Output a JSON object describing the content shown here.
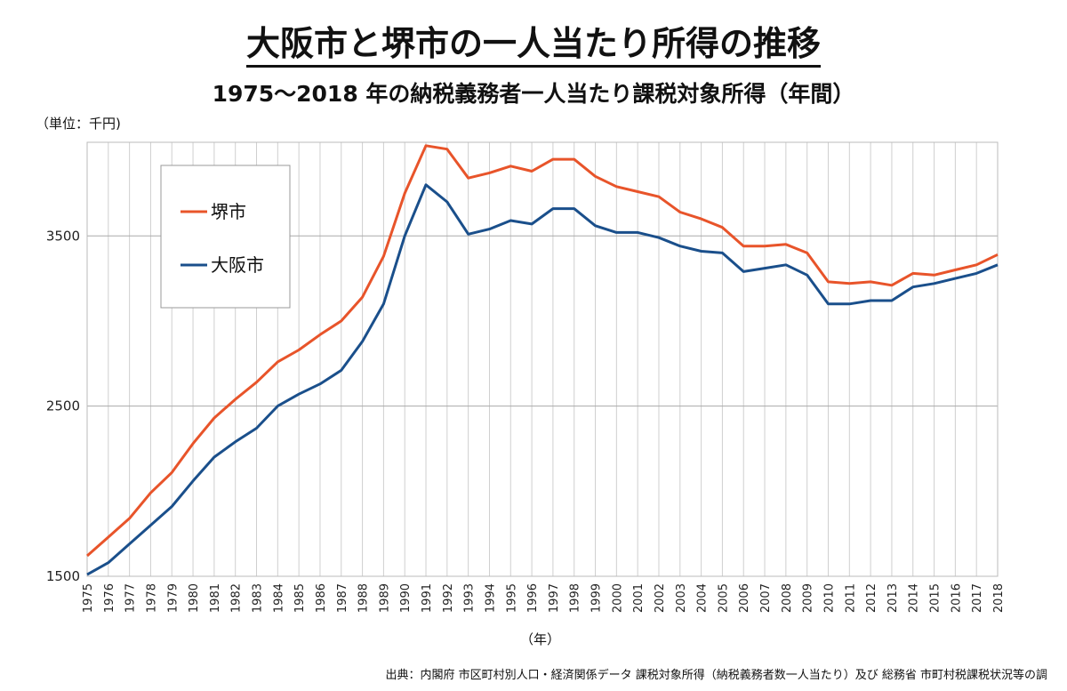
{
  "title": "大阪市と堺市の一人当たり所得の推移",
  "subtitle": "1975～2018 年の納税義務者一人当たり課税対象所得（年間）",
  "unit_label": "（単位：千円)",
  "source": "出典：内閣府 市区町村別人口・経済関係データ 課税対象所得（納税義務者数一人当たり）及び 総務省 市町村税課税状況等の調",
  "colors": {
    "sakai": "#e8542a",
    "osaka": "#1a4f8b",
    "grid": "#cfcfcf"
  },
  "chart_data": {
    "type": "line",
    "xlabel": "（年）",
    "ylabel": "",
    "ylim": [
      1500,
      4050
    ],
    "yticks": [
      1500,
      2500,
      3500
    ],
    "grid": true,
    "legend_position": "top-left",
    "categories": [
      "1975",
      "1976",
      "1977",
      "1978",
      "1979",
      "1980",
      "1981",
      "1982",
      "1983",
      "1984",
      "1985",
      "1986",
      "1987",
      "1988",
      "1989",
      "1990",
      "1991",
      "1992",
      "1993",
      "1994",
      "1995",
      "1996",
      "1997",
      "1998",
      "1999",
      "2000",
      "2001",
      "2002",
      "2003",
      "2004",
      "2005",
      "2006",
      "2007",
      "2008",
      "2009",
      "2010",
      "2011",
      "2012",
      "2013",
      "2014",
      "2015",
      "2016",
      "2017",
      "2018"
    ],
    "series": [
      {
        "name": "堺市",
        "color": "#e8542a",
        "values": [
          1620,
          1730,
          1840,
          1990,
          2110,
          2280,
          2430,
          2540,
          2640,
          2760,
          2830,
          2920,
          3000,
          3140,
          3380,
          3750,
          4030,
          4010,
          3840,
          3870,
          3910,
          3880,
          3950,
          3950,
          3850,
          3790,
          3760,
          3730,
          3640,
          3600,
          3550,
          3440,
          3440,
          3450,
          3400,
          3230,
          3220,
          3230,
          3210,
          3280,
          3270,
          3300,
          3330,
          3390
        ]
      },
      {
        "name": "大阪市",
        "color": "#1a4f8b",
        "values": [
          1510,
          1580,
          1690,
          1800,
          1910,
          2060,
          2200,
          2290,
          2370,
          2500,
          2570,
          2630,
          2710,
          2880,
          3100,
          3500,
          3800,
          3700,
          3510,
          3540,
          3590,
          3570,
          3660,
          3660,
          3560,
          3520,
          3520,
          3490,
          3440,
          3410,
          3400,
          3290,
          3310,
          3330,
          3270,
          3100,
          3100,
          3120,
          3120,
          3200,
          3220,
          3250,
          3280,
          3330
        ]
      }
    ]
  }
}
